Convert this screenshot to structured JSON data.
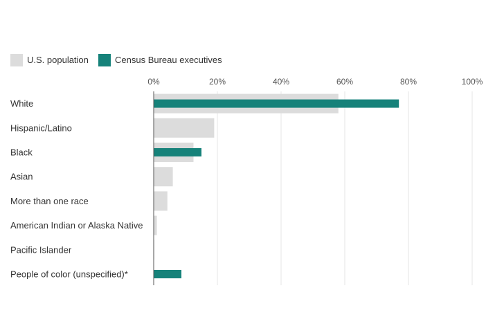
{
  "chart_data": {
    "type": "bar",
    "orientation": "horizontal",
    "title": "",
    "xlabel": "",
    "ylabel": "",
    "xlim": [
      0,
      100
    ],
    "x_ticks": [
      "0%",
      "20%",
      "40%",
      "60%",
      "80%",
      "100%"
    ],
    "grid": true,
    "legend_position": "top-left",
    "categories": [
      "White",
      "Hispanic/Latino",
      "Black",
      "Asian",
      "More than one race",
      "American Indian or Alaska Native",
      "Pacific Islander",
      "People of color (unspecified)*"
    ],
    "series": [
      {
        "name": "U.S. population",
        "color": "#dcdcdc",
        "values": [
          58,
          19,
          12.5,
          6,
          4.3,
          1,
          0.2,
          0
        ]
      },
      {
        "name": "Census Bureau executives",
        "color": "#16827a",
        "values": [
          77,
          0,
          15,
          0,
          0,
          0,
          0,
          8.7
        ]
      }
    ]
  }
}
